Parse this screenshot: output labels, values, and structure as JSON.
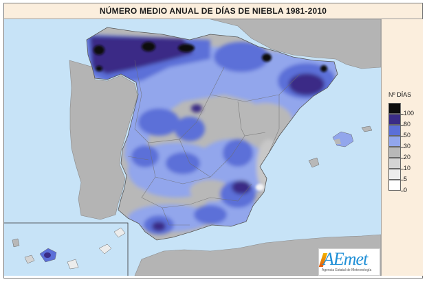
{
  "title": "NÚMERO MEDIO ANUAL DE DÍAS DE NIEBLA 1981-2010",
  "legend": {
    "title": "Nº DÍAS",
    "classes": [
      {
        "label": "100",
        "color": "#0d0d0d"
      },
      {
        "label": "80",
        "color": "#3a2c86"
      },
      {
        "label": "50",
        "color": "#5b6fd8"
      },
      {
        "label": "30",
        "color": "#92a6ec"
      },
      {
        "label": "20",
        "color": "#b8b8b8"
      },
      {
        "label": "10",
        "color": "#d4d4d4"
      },
      {
        "label": "5",
        "color": "#ececec"
      },
      {
        "label": "0",
        "color": "#ffffff"
      }
    ]
  },
  "logo": {
    "name": "AEmet",
    "subtitle": "Agencia Estatal de Meteorología"
  },
  "colors": {
    "sea": "#c7e3f7",
    "foreign_land": "#b4b4b4",
    "panel": "#fbeedd"
  }
}
